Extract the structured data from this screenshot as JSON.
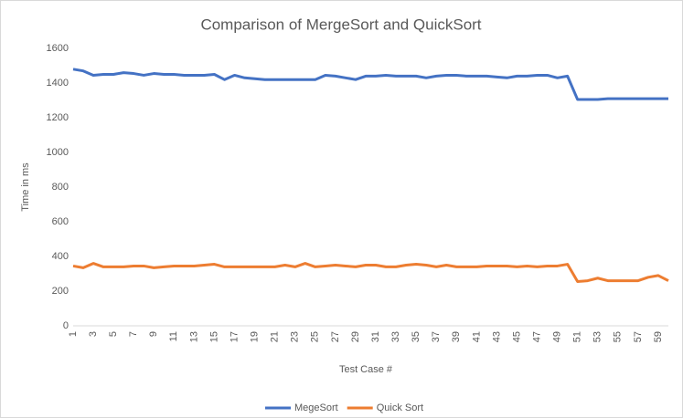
{
  "chart_data": {
    "type": "line",
    "title": "Comparison of MergeSort and QuickSort",
    "x_label": "Test Case #",
    "y_label": "Time in ms",
    "categories": [
      "1",
      null,
      "3",
      null,
      "5",
      null,
      "7",
      null,
      "9",
      null,
      "11",
      null,
      "13",
      null,
      "15",
      null,
      "17",
      null,
      "19",
      null,
      "21",
      null,
      "23",
      null,
      "25",
      null,
      "27",
      null,
      "29",
      null,
      "31",
      null,
      "33",
      null,
      "35",
      null,
      "37",
      null,
      "39",
      null,
      "41",
      null,
      "43",
      null,
      "45",
      null,
      "47",
      null,
      "49",
      null,
      "51",
      null,
      "53",
      null,
      "55",
      null,
      "57",
      null,
      "59",
      null
    ],
    "series": [
      {
        "name": "MegeSort",
        "color": "#4472c4",
        "values": [
          1480,
          1470,
          1445,
          1450,
          1450,
          1460,
          1455,
          1445,
          1455,
          1450,
          1450,
          1445,
          1445,
          1445,
          1450,
          1420,
          1445,
          1430,
          1425,
          1420,
          1420,
          1420,
          1420,
          1420,
          1420,
          1445,
          1440,
          1430,
          1420,
          1440,
          1440,
          1445,
          1440,
          1440,
          1440,
          1430,
          1440,
          1445,
          1445,
          1440,
          1440,
          1440,
          1435,
          1430,
          1440,
          1440,
          1445,
          1445,
          1430,
          1440,
          1305,
          1305,
          1305,
          1310,
          1310,
          1310,
          1310,
          1310,
          1310,
          1310
        ]
      },
      {
        "name": "Quick Sort",
        "color": "#ed7d31",
        "values": [
          345,
          335,
          360,
          340,
          340,
          340,
          345,
          345,
          335,
          340,
          345,
          345,
          345,
          350,
          355,
          340,
          340,
          340,
          340,
          340,
          340,
          350,
          340,
          360,
          340,
          345,
          350,
          345,
          340,
          350,
          350,
          340,
          340,
          350,
          355,
          350,
          340,
          350,
          340,
          340,
          340,
          345,
          345,
          345,
          340,
          345,
          340,
          345,
          345,
          355,
          255,
          260,
          275,
          260,
          260,
          260,
          260,
          280,
          290,
          260
        ]
      }
    ],
    "ylim": [
      0,
      1600
    ],
    "yticks": [
      0,
      200,
      400,
      600,
      800,
      1000,
      1200,
      1400,
      1600
    ],
    "grid": false,
    "legend": "bottom"
  }
}
